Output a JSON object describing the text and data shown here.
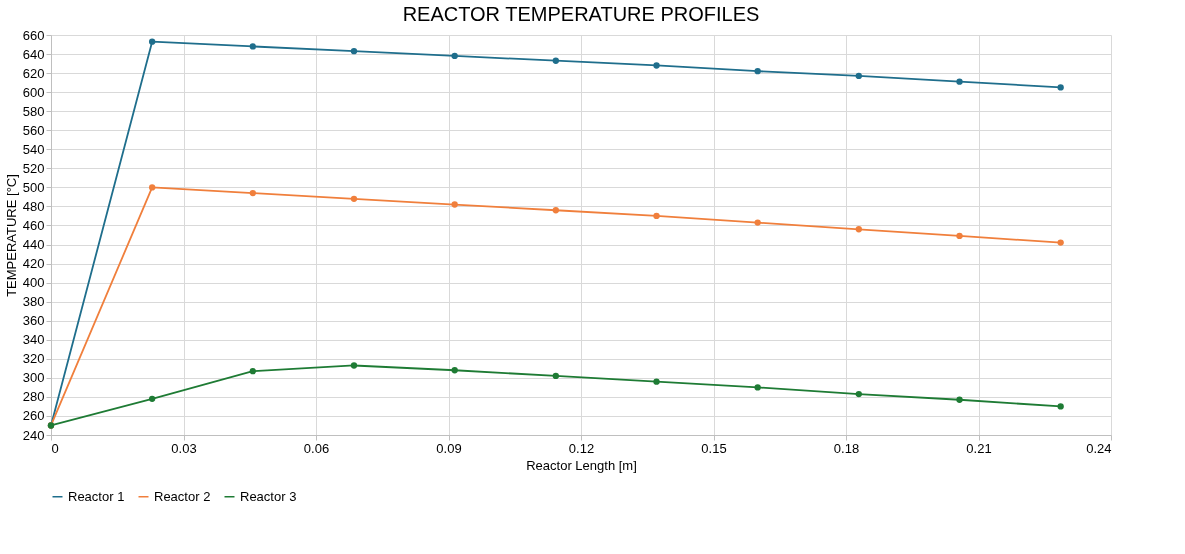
{
  "chart_data": {
    "type": "line",
    "title": "REACTOR TEMPERATURE PROFILES",
    "xlabel": "Reactor Length [m]",
    "ylabel": "TEMPERATURE [°C]",
    "x": [
      0,
      0.0229,
      0.0457,
      0.0686,
      0.0914,
      0.1143,
      0.1371,
      0.16,
      0.1829,
      0.2057,
      0.2286
    ],
    "series": [
      {
        "name": "Reactor 1",
        "color": "#1f6e8c",
        "values": [
          250,
          653,
          648,
          643,
          638,
          633,
          628,
          622,
          617,
          611,
          605
        ]
      },
      {
        "name": "Reactor 2",
        "color": "#f07f3c",
        "values": [
          250,
          500,
          494,
          488,
          482,
          476,
          470,
          463,
          456,
          449,
          442
        ]
      },
      {
        "name": "Reactor 3",
        "color": "#1e7b34",
        "values": [
          250,
          278,
          307,
          313,
          308,
          302,
          296,
          290,
          283,
          277,
          270
        ]
      }
    ],
    "xlim": [
      0,
      0.24
    ],
    "xticks": [
      0,
      0.03,
      0.06,
      0.09,
      0.12,
      0.15,
      0.18,
      0.21,
      0.24
    ],
    "ylim": [
      240,
      660
    ],
    "yticks": [
      240,
      260,
      280,
      300,
      320,
      340,
      360,
      380,
      400,
      420,
      440,
      460,
      480,
      500,
      520,
      540,
      560,
      580,
      600,
      620,
      640,
      660
    ],
    "grid": true,
    "legend": "bottom",
    "marker": "circle",
    "line_style": "solid"
  }
}
